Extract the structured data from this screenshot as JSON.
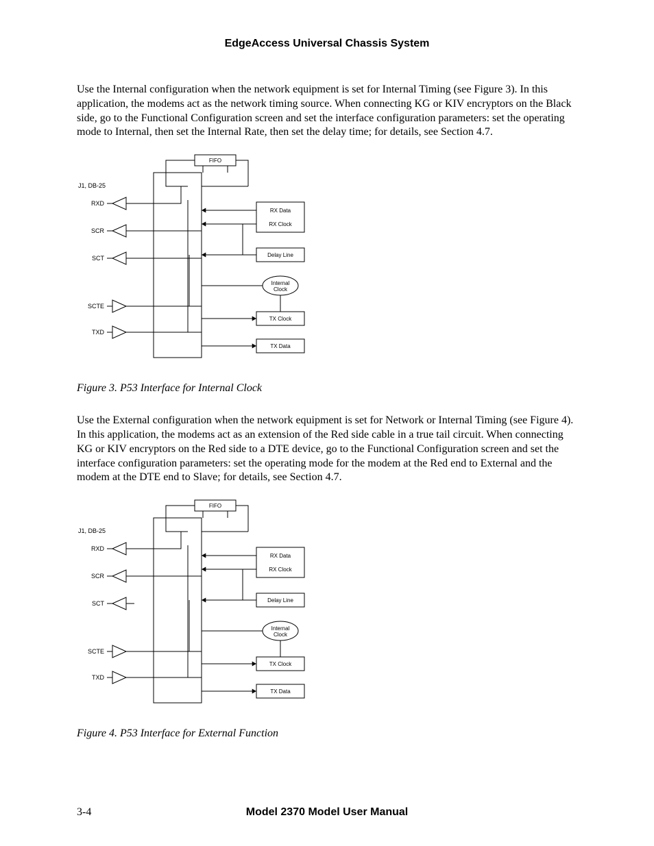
{
  "header": {
    "title": "EdgeAccess Universal Chassis System"
  },
  "paragraph1": "Use the Internal configuration when the network equipment is set for Internal Timing (see Figure 3).  In this application, the modems act as the network timing source.  When connecting KG or KIV encryptors on the Black side, go to the Functional Configuration screen and set the interface configuration parameters:  set the operating mode to Internal, then set the Internal Rate, then set the delay time; for details, see Section 4.7.",
  "figure3": {
    "caption": "Figure 3.  P53 Interface for Internal Clock",
    "connector": "J1, DB-25",
    "left_labels": [
      "RXD",
      "SCR",
      "SCT",
      "SCTE",
      "TXD"
    ],
    "left_dirs": [
      "out",
      "out",
      "out",
      "in",
      "in"
    ],
    "sct_connected": true,
    "right_labels": [
      "FIFO",
      "RX Data",
      "RX Clock",
      "Delay Line",
      "Internal Clock",
      "TX Clock",
      "TX Data"
    ],
    "stroke": "#000000",
    "fill_bg": "#ffffff"
  },
  "paragraph2": "Use the External configuration when the network equipment is set for Network or Internal Timing (see Figure 4).  In this application, the modems act as an extension of the Red side cable in a true tail circuit.  When connecting KG or KIV encryptors on the Red side to a DTE device, go to the Functional Configuration screen and set the interface configuration parameters:  set the operating mode for the modem at the Red end to External and the modem at the DTE end to Slave; for details, see Section 4.7.",
  "figure4": {
    "caption": "Figure 4.  P53 Interface for External Function",
    "connector": "J1, DB-25",
    "left_labels": [
      "RXD",
      "SCR",
      "SCT",
      "SCTE",
      "TXD"
    ],
    "left_dirs": [
      "out",
      "out",
      "out",
      "in",
      "in"
    ],
    "sct_connected": false,
    "right_labels": [
      "FIFO",
      "RX Data",
      "RX Clock",
      "Delay Line",
      "Internal Clock",
      "TX Clock",
      "TX Data"
    ],
    "stroke": "#000000",
    "fill_bg": "#ffffff"
  },
  "footer": {
    "page": "3-4",
    "title": "Model 2370 Model User Manual"
  }
}
